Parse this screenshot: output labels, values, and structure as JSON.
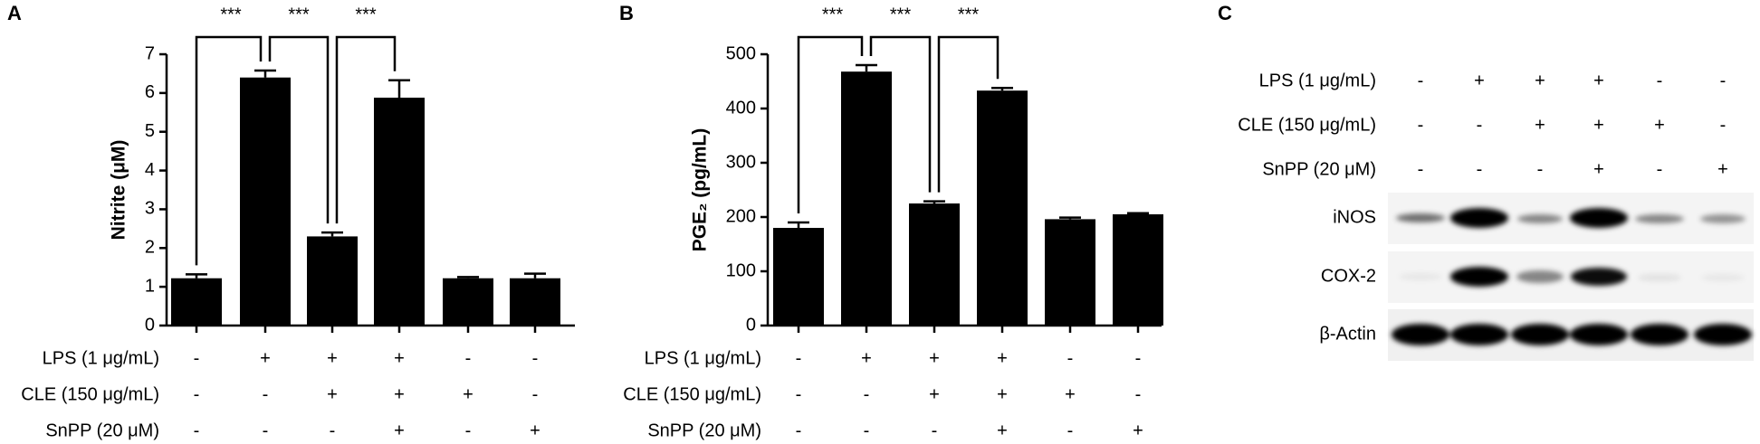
{
  "chart_data": [
    {
      "type": "bar",
      "panel": "A",
      "y_label": "Nitrite (μM)",
      "values": [
        1.22,
        6.4,
        2.3,
        5.88,
        1.22,
        1.22
      ],
      "errors": [
        0.1,
        0.18,
        0.1,
        0.45,
        0.03,
        0.12
      ],
      "color": "#000000",
      "ylim": [
        0,
        7
      ],
      "yticks": [
        0,
        1,
        2,
        3,
        4,
        5,
        6,
        7
      ],
      "treatments": [
        {
          "label": "LPS (1 μg/mL)",
          "signs": [
            "-",
            "+",
            "+",
            "+",
            "-",
            "-"
          ]
        },
        {
          "label": "CLE (150 μg/mL)",
          "signs": [
            "-",
            "-",
            "+",
            "+",
            "+",
            "-"
          ]
        },
        {
          "label": "SnPP (20 μM)",
          "signs": [
            "-",
            "-",
            "-",
            "+",
            "-",
            "+"
          ]
        }
      ],
      "significance": [
        {
          "from": 0,
          "to": 1,
          "label": "***"
        },
        {
          "from": 1,
          "to": 2,
          "label": "***"
        },
        {
          "from": 2,
          "to": 3,
          "label": "***"
        }
      ]
    },
    {
      "type": "bar",
      "panel": "B",
      "y_label": "PGE₂ (pg/mL)",
      "values": [
        180,
        468,
        225,
        433,
        196,
        205
      ],
      "errors": [
        10,
        12,
        4,
        5,
        3,
        2
      ],
      "color": "#000000",
      "ylim": [
        0,
        500
      ],
      "yticks": [
        0,
        100,
        200,
        300,
        400,
        500
      ],
      "treatments": [
        {
          "label": "LPS (1 μg/mL)",
          "signs": [
            "-",
            "+",
            "+",
            "+",
            "-",
            "-"
          ]
        },
        {
          "label": "CLE (150 μg/mL)",
          "signs": [
            "-",
            "-",
            "+",
            "+",
            "+",
            "-"
          ]
        },
        {
          "label": "SnPP (20 μM)",
          "signs": [
            "-",
            "-",
            "-",
            "+",
            "-",
            "+"
          ]
        }
      ],
      "significance": [
        {
          "from": 0,
          "to": 1,
          "label": "***"
        },
        {
          "from": 1,
          "to": 2,
          "label": "***"
        },
        {
          "from": 2,
          "to": 3,
          "label": "***"
        }
      ]
    }
  ],
  "blot": {
    "panel": "C",
    "treatments": [
      {
        "label": "LPS (1 μg/mL)",
        "signs": [
          "-",
          "+",
          "+",
          "+",
          "-",
          "-"
        ]
      },
      {
        "label": "CLE (150 μg/mL)",
        "signs": [
          "-",
          "-",
          "+",
          "+",
          "+",
          "-"
        ]
      },
      {
        "label": "SnPP (20 μM)",
        "signs": [
          "-",
          "-",
          "-",
          "+",
          "-",
          "+"
        ]
      }
    ],
    "proteins": [
      "iNOS",
      "COX-2",
      "β-Actin"
    ]
  }
}
